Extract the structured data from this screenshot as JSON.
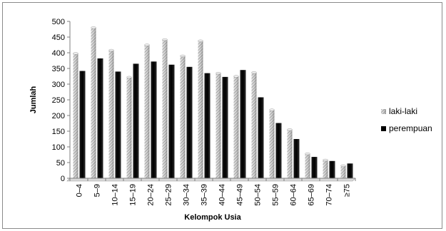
{
  "chart_data": {
    "type": "bar",
    "title": "",
    "xlabel": "Kelompok Usia",
    "ylabel": "Jumlah",
    "ylim": [
      0,
      500
    ],
    "yticks": [
      0,
      50,
      100,
      150,
      200,
      250,
      300,
      350,
      400,
      450,
      500
    ],
    "categories": [
      "0–4",
      "5–9",
      "10–14",
      "15–19",
      "20–24",
      "25–29",
      "30–34",
      "35–39",
      "40–44",
      "45–49",
      "50–54",
      "55–59",
      "60–64",
      "65–69",
      "70–74",
      "≥75"
    ],
    "series": [
      {
        "name": "laki-laki",
        "pattern": "hatched-gray",
        "values": [
          398,
          480,
          408,
          322,
          425,
          442,
          390,
          438,
          335,
          325,
          337,
          218,
          155,
          78,
          58,
          40
        ]
      },
      {
        "name": "perempuan",
        "color": "#000000",
        "values": [
          342,
          382,
          340,
          365,
          372,
          362,
          355,
          335,
          323,
          345,
          258,
          176,
          125,
          68,
          55,
          47
        ]
      }
    ],
    "grid": false,
    "legend": "right"
  }
}
